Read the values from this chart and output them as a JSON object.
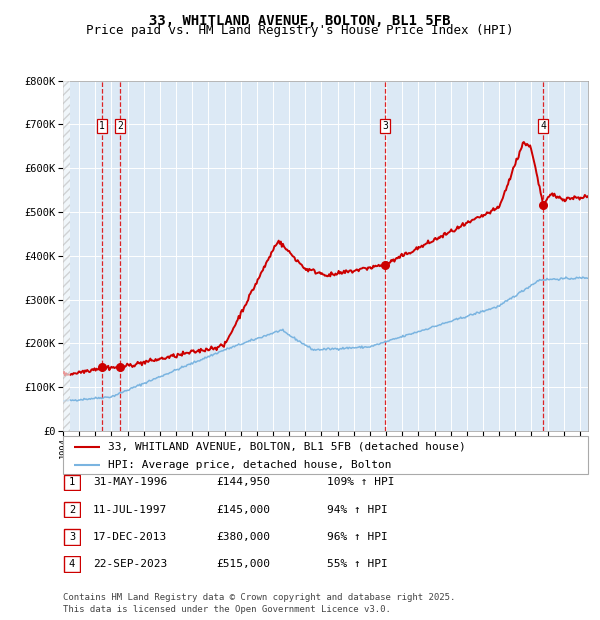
{
  "title": "33, WHITLAND AVENUE, BOLTON, BL1 5FB",
  "subtitle": "Price paid vs. HM Land Registry's House Price Index (HPI)",
  "ylim": [
    0,
    800000
  ],
  "yticks": [
    0,
    100000,
    200000,
    300000,
    400000,
    500000,
    600000,
    700000,
    800000
  ],
  "ytick_labels": [
    "£0",
    "£100K",
    "£200K",
    "£300K",
    "£400K",
    "£500K",
    "£600K",
    "£700K",
    "£800K"
  ],
  "xlim_start": 1994.0,
  "xlim_end": 2026.5,
  "plot_bg_color": "#dce9f5",
  "hpi_line_color": "#7ab4e0",
  "price_line_color": "#cc0000",
  "vline_color": "#dd0000",
  "grid_color": "#ffffff",
  "transaction_dates": [
    1996.415,
    1997.527,
    2013.958,
    2023.726
  ],
  "transaction_prices": [
    144950,
    145000,
    380000,
    515000
  ],
  "transaction_labels": [
    "1",
    "2",
    "3",
    "4"
  ],
  "legend_price_label": "33, WHITLAND AVENUE, BOLTON, BL1 5FB (detached house)",
  "legend_hpi_label": "HPI: Average price, detached house, Bolton",
  "table_rows": [
    [
      "1",
      "31-MAY-1996",
      "£144,950",
      "109% ↑ HPI"
    ],
    [
      "2",
      "11-JUL-1997",
      "£145,000",
      "94% ↑ HPI"
    ],
    [
      "3",
      "17-DEC-2013",
      "£380,000",
      "96% ↑ HPI"
    ],
    [
      "4",
      "22-SEP-2023",
      "£515,000",
      "55% ↑ HPI"
    ]
  ],
  "footer": "Contains HM Land Registry data © Crown copyright and database right 2025.\nThis data is licensed under the Open Government Licence v3.0.",
  "title_fontsize": 10,
  "subtitle_fontsize": 9,
  "tick_fontsize": 7.5,
  "legend_fontsize": 8,
  "table_fontsize": 8,
  "footer_fontsize": 6.5
}
